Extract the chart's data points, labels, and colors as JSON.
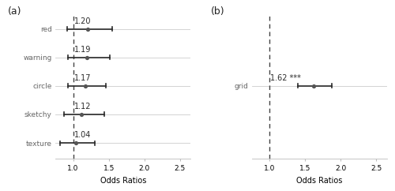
{
  "panel_a": {
    "categories": [
      "red",
      "warning",
      "circle",
      "sketchy",
      "texture"
    ],
    "estimates": [
      1.2,
      1.19,
      1.17,
      1.12,
      1.04
    ],
    "ci_low": [
      0.92,
      0.93,
      0.93,
      0.87,
      0.82
    ],
    "ci_high": [
      1.55,
      1.51,
      1.46,
      1.44,
      1.3
    ],
    "labels": [
      "1.20",
      "1.19",
      "1.17",
      "1.12",
      "1.04"
    ],
    "ref_line": 1.0,
    "xlim": [
      0.75,
      2.65
    ],
    "xticks": [
      1.0,
      1.5,
      2.0,
      2.5
    ],
    "xlabel": "Odds Ratios",
    "panel_label": "(a)"
  },
  "panel_b": {
    "categories": [
      "grid"
    ],
    "estimates": [
      1.62
    ],
    "ci_low": [
      1.4
    ],
    "ci_high": [
      1.87
    ],
    "labels": [
      "1.62 ***"
    ],
    "ref_line": 1.0,
    "xlim": [
      0.75,
      2.65
    ],
    "xticks": [
      1.0,
      1.5,
      2.0,
      2.5
    ],
    "xlabel": "Odds Ratios",
    "panel_label": "(b)"
  },
  "marker_color": "#555555",
  "line_color": "#2a2a2a",
  "grid_color": "#cccccc",
  "dashed_color": "#444444",
  "label_color": "#666666",
  "text_color": "#2a2a2a",
  "bg_color": "#ffffff",
  "fontsize": 6.5,
  "label_fontsize": 7.0
}
